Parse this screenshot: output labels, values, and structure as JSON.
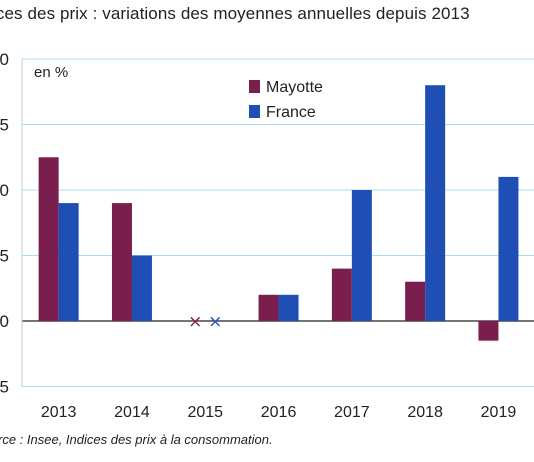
{
  "title": "ices des prix : variations des moyennes annuelles depuis 2013",
  "source": "rce : Insee, Indices des prix à la consommation.",
  "colors": {
    "mayotte": "#7a1e4e",
    "france": "#1f4fb5",
    "grid": "#a8dff0"
  },
  "chart_data": {
    "type": "bar",
    "unit_label": "en %",
    "categories": [
      "2013",
      "2014",
      "2015",
      "2016",
      "2017",
      "2018",
      "2019"
    ],
    "series": [
      {
        "name": "Mayotte",
        "values": [
          2.5,
          1.8,
          null,
          0.4,
          0.8,
          0.6,
          -0.3
        ]
      },
      {
        "name": "France",
        "values": [
          1.8,
          1.0,
          null,
          0.4,
          2.0,
          3.6,
          2.2
        ]
      }
    ],
    "missing_marker": "x",
    "missing_categories": [
      "2015"
    ],
    "ylim": [
      -1,
      4
    ],
    "ytick_labels": [
      "5",
      "0",
      "5",
      "0",
      "5",
      "0"
    ],
    "ytick_values": [
      -1,
      0,
      1,
      2,
      3,
      4
    ],
    "grid": true,
    "legend_position": "top-center"
  }
}
